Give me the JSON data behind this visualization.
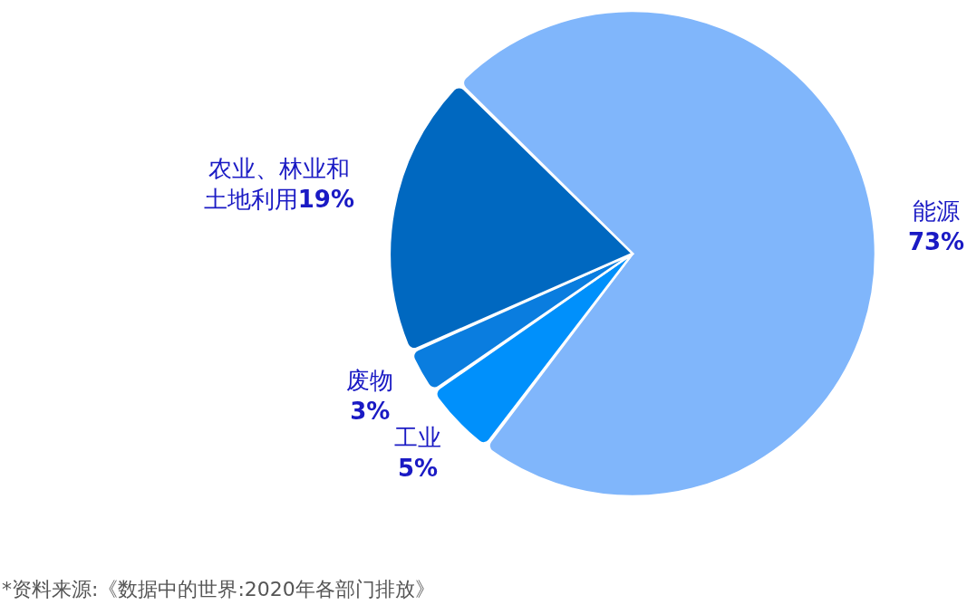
{
  "chart_data": {
    "type": "pie",
    "categories": [
      "能源",
      "工业",
      "废物",
      "农业、林业和土地利用"
    ],
    "values": [
      73,
      5,
      3,
      19
    ],
    "colors": [
      "#80b6fb",
      "#0090fb",
      "#0a7ddf",
      "#0068c0"
    ],
    "value_labels": [
      "73%",
      "5%",
      "3%",
      "19%"
    ],
    "annotations": [
      "*资料来源:《数据中的世界:2020年各部门排放》"
    ],
    "legend": false
  }
}
